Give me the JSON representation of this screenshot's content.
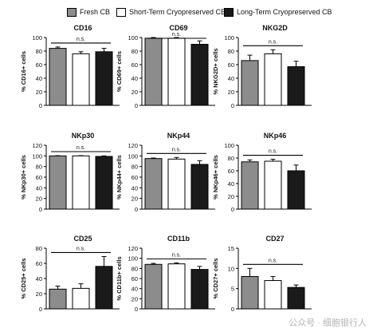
{
  "legend": {
    "items": [
      {
        "label": "Fresh CB",
        "color": "#8c8c8c"
      },
      {
        "label": "Short-Term Cryopreserved CB",
        "color": "#ffffff"
      },
      {
        "label": "Long-Term Cryopreserved CB",
        "color": "#1a1a1a"
      }
    ]
  },
  "watermark": "公众号 · 细胞银行人",
  "chart_data": [
    {
      "type": "bar",
      "title": "CD16",
      "ylabel": "% CD16+ cells",
      "ylim": [
        0,
        100
      ],
      "yticks": [
        0,
        20,
        40,
        60,
        80,
        100
      ],
      "categories": [
        "Fresh CB",
        "Short-Term Cryopreserved CB",
        "Long-Term Cryopreserved CB"
      ],
      "values": [
        84,
        76,
        79
      ],
      "errors": [
        2,
        3,
        5
      ],
      "annotation": "n.s.",
      "grid": false
    },
    {
      "type": "bar",
      "title": "CD69",
      "ylabel": "% CD69+ cells",
      "ylim": [
        0,
        100
      ],
      "yticks": [
        0,
        20,
        40,
        60,
        80,
        100
      ],
      "categories": [
        "Fresh CB",
        "Short-Term Cryopreserved CB",
        "Long-Term Cryopreserved CB"
      ],
      "values": [
        99,
        99,
        90
      ],
      "errors": [
        1,
        1,
        5
      ],
      "annotation": "n.s.",
      "grid": false
    },
    {
      "type": "bar",
      "title": "NKG2D",
      "ylabel": "% NKG2D+ cells",
      "ylim": [
        0,
        100
      ],
      "yticks": [
        0,
        20,
        40,
        60,
        80,
        100
      ],
      "categories": [
        "Fresh CB",
        "Short-Term Cryopreserved CB",
        "Long-Term Cryopreserved CB"
      ],
      "values": [
        66,
        76,
        57
      ],
      "errors": [
        8,
        6,
        8
      ],
      "annotation": "n.s.",
      "grid": false
    },
    {
      "type": "bar",
      "title": "NKp30",
      "ylabel": "% NKp30+ cells",
      "ylim": [
        0,
        120
      ],
      "yticks": [
        0,
        20,
        40,
        60,
        80,
        100,
        120
      ],
      "categories": [
        "Fresh CB",
        "Short-Term Cryopreserved CB",
        "Long-Term Cryopreserved CB"
      ],
      "values": [
        100,
        100,
        99
      ],
      "errors": [
        0.5,
        0.5,
        1
      ],
      "annotation": "n.s.",
      "grid": false
    },
    {
      "type": "bar",
      "title": "NKp44",
      "ylabel": "% NKp44+ cells",
      "ylim": [
        0,
        120
      ],
      "yticks": [
        0,
        20,
        40,
        60,
        80,
        100,
        120
      ],
      "categories": [
        "Fresh CB",
        "Short-Term Cryopreserved CB",
        "Long-Term Cryopreserved CB"
      ],
      "values": [
        95,
        94,
        84
      ],
      "errors": [
        1,
        3,
        7
      ],
      "annotation": "n.s.",
      "grid": false
    },
    {
      "type": "bar",
      "title": "NKp46",
      "ylabel": "% NKp46+ cells",
      "ylim": [
        0,
        100
      ],
      "yticks": [
        0,
        20,
        40,
        60,
        80,
        100
      ],
      "categories": [
        "Fresh CB",
        "Short-Term Cryopreserved CB",
        "Long-Term Cryopreserved CB"
      ],
      "values": [
        74,
        75,
        60
      ],
      "errors": [
        3,
        3,
        9
      ],
      "annotation": "n.s.",
      "grid": false
    },
    {
      "type": "bar",
      "title": "CD25",
      "ylabel": "% CD25+ cells",
      "ylim": [
        0,
        80
      ],
      "yticks": [
        0,
        20,
        40,
        60,
        80
      ],
      "categories": [
        "Fresh CB",
        "Short-Term Cryopreserved CB",
        "Long-Term Cryopreserved CB"
      ],
      "values": [
        26,
        27,
        56
      ],
      "errors": [
        4,
        6,
        13
      ],
      "annotation": "n.s.",
      "grid": false
    },
    {
      "type": "bar",
      "title": "CD11b",
      "ylabel": "% CD11b+ cells",
      "ylim": [
        0,
        120
      ],
      "yticks": [
        0,
        20,
        40,
        60,
        80,
        100,
        120
      ],
      "categories": [
        "Fresh CB",
        "Short-Term Cryopreserved CB",
        "Long-Term Cryopreserved CB"
      ],
      "values": [
        88,
        89,
        78
      ],
      "errors": [
        2,
        2,
        6
      ],
      "annotation": "n.s.",
      "grid": false
    },
    {
      "type": "bar",
      "title": "CD27",
      "ylabel": "% CD27+ cells",
      "ylim": [
        0,
        15
      ],
      "yticks": [
        0,
        5,
        10,
        15
      ],
      "categories": [
        "Fresh CB",
        "Short-Term Cryopreserved CB",
        "Long-Term Cryopreserved CB"
      ],
      "values": [
        8,
        7,
        5.3
      ],
      "errors": [
        2,
        1,
        0.6
      ],
      "annotation": "n.s.",
      "grid": false
    }
  ]
}
